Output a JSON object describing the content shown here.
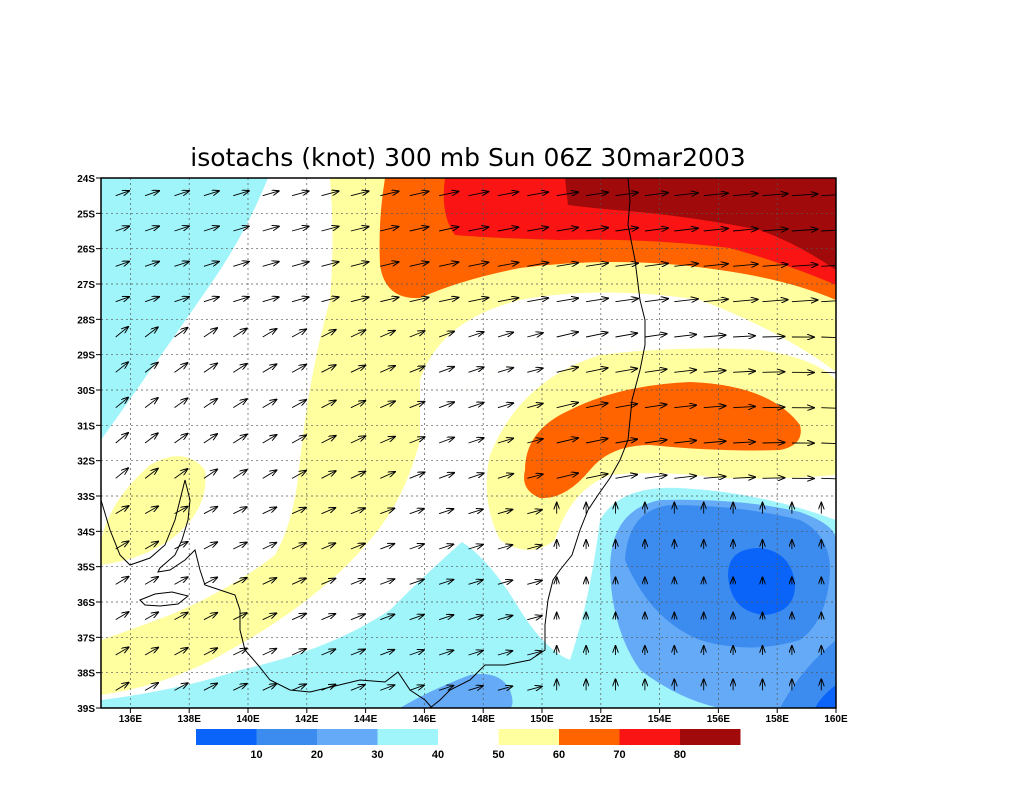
{
  "title": "isotachs (knot) 300 mb Sun 06Z 30mar2003",
  "map": {
    "lon_range": [
      135,
      160
    ],
    "lat_range": [
      -39,
      -24
    ],
    "lon_ticks": [
      {
        "value": 136,
        "label": "136E"
      },
      {
        "value": 138,
        "label": "138E"
      },
      {
        "value": 140,
        "label": "140E"
      },
      {
        "value": 142,
        "label": "142E"
      },
      {
        "value": 144,
        "label": "144E"
      },
      {
        "value": 146,
        "label": "146E"
      },
      {
        "value": 148,
        "label": "148E"
      },
      {
        "value": 150,
        "label": "150E"
      },
      {
        "value": 152,
        "label": "152E"
      },
      {
        "value": 154,
        "label": "154E"
      },
      {
        "value": 156,
        "label": "156E"
      },
      {
        "value": 158,
        "label": "158E"
      },
      {
        "value": 160,
        "label": "160E"
      }
    ],
    "lat_ticks": [
      {
        "value": -24,
        "label": "24S"
      },
      {
        "value": -25,
        "label": "25S"
      },
      {
        "value": -26,
        "label": "26S"
      },
      {
        "value": -27,
        "label": "27S"
      },
      {
        "value": -28,
        "label": "28S"
      },
      {
        "value": -29,
        "label": "29S"
      },
      {
        "value": -30,
        "label": "30S"
      },
      {
        "value": -31,
        "label": "31S"
      },
      {
        "value": -32,
        "label": "32S"
      },
      {
        "value": -33,
        "label": "33S"
      },
      {
        "value": -34,
        "label": "34S"
      },
      {
        "value": -35,
        "label": "35S"
      },
      {
        "value": -36,
        "label": "36S"
      },
      {
        "value": -37,
        "label": "37S"
      },
      {
        "value": -38,
        "label": "38S"
      },
      {
        "value": -39,
        "label": "39S"
      }
    ],
    "grid": true,
    "background_level_color": "#ffffff",
    "vectors": "wind-arrows",
    "coastline": "black"
  },
  "colorbar": {
    "bins": [
      {
        "color": "#0a64fa"
      },
      {
        "color": "#3c8cf0"
      },
      {
        "color": "#64aaf6"
      },
      {
        "color": "#a0f5fa"
      },
      {
        "color": "#ffffff"
      },
      {
        "color": "#ffffa0"
      },
      {
        "color": "#ff6400"
      },
      {
        "color": "#fa1414"
      },
      {
        "color": "#a00a0a"
      }
    ],
    "labels": [
      "10",
      "20",
      "30",
      "40",
      "50",
      "60",
      "70",
      "80"
    ]
  }
}
